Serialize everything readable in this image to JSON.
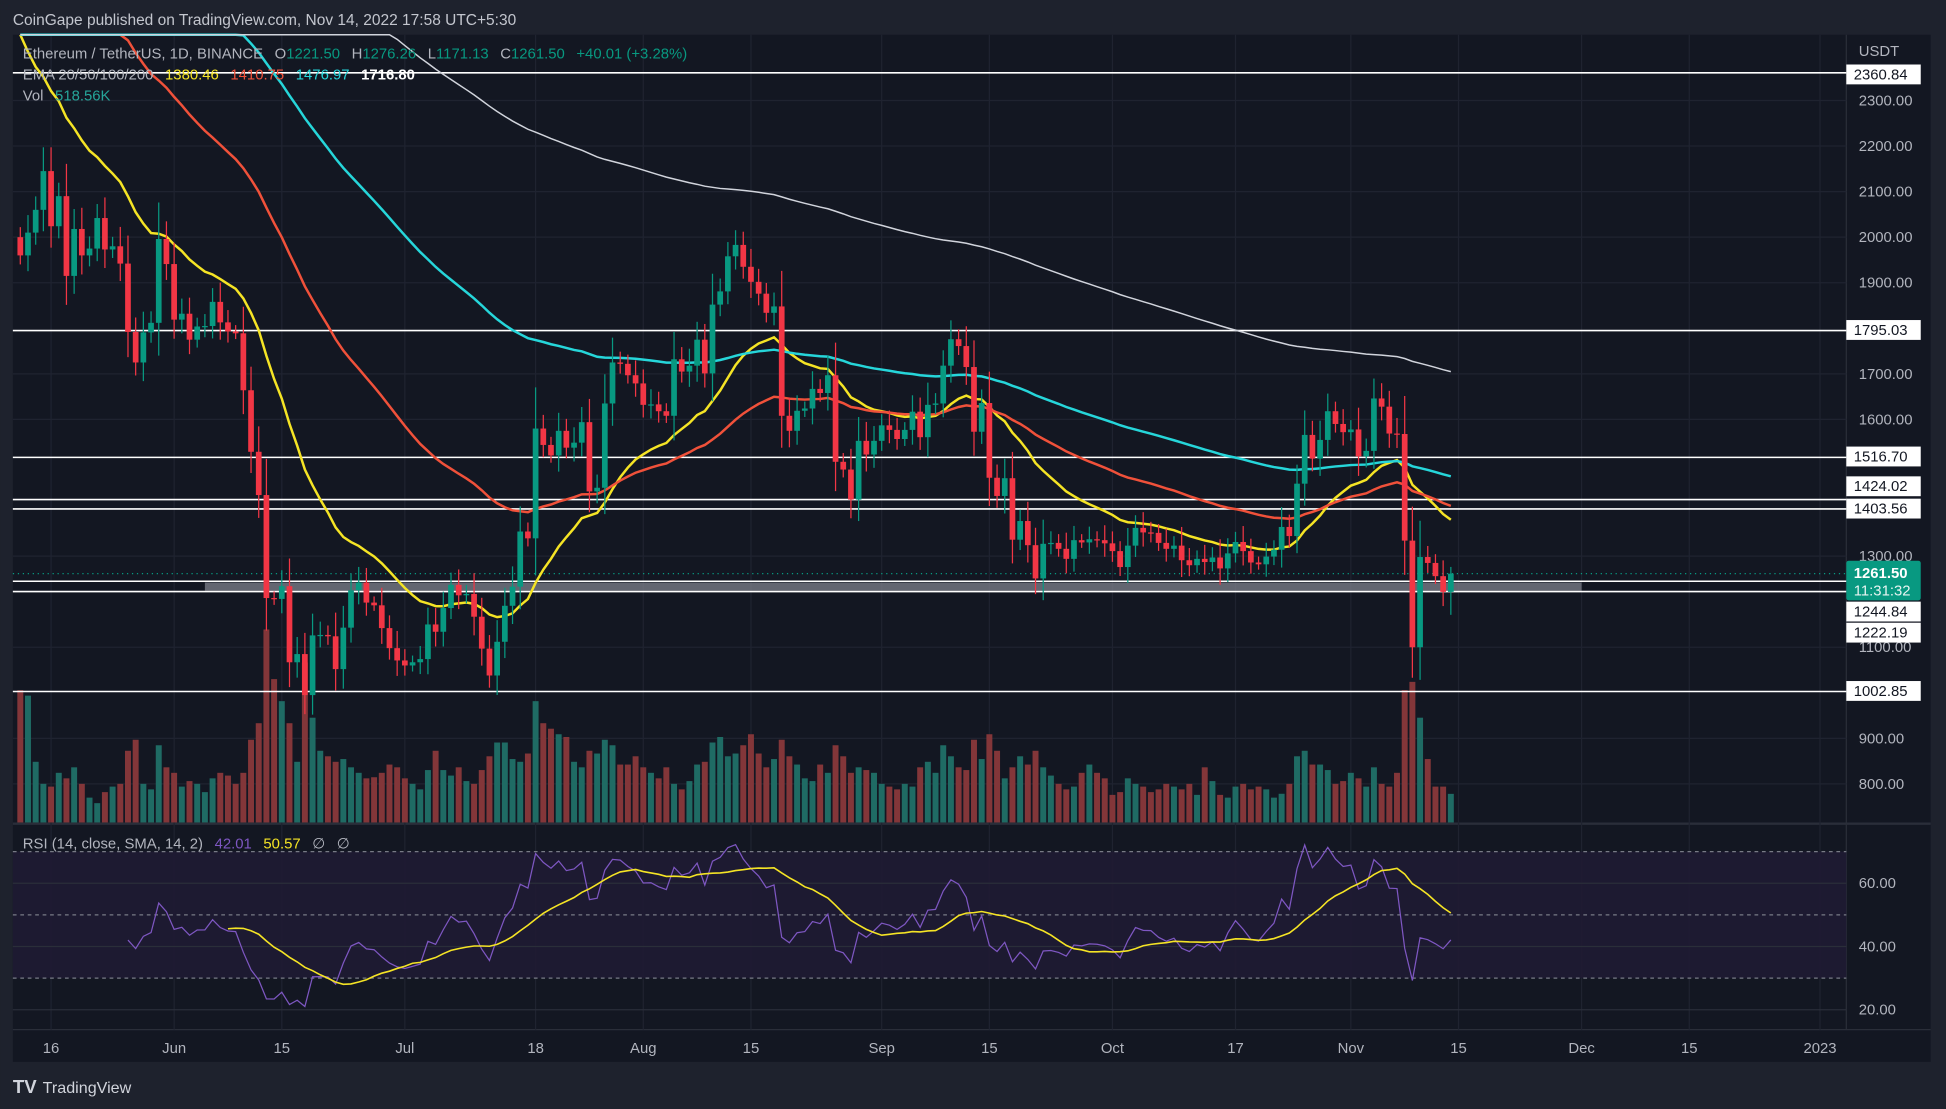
{
  "header": {
    "published": "CoinGape published on TradingView.com, Nov 14, 2022 17:58 UTC+5:30"
  },
  "legend": {
    "symbol": "Ethereum / TetherUS, 1D, BINANCE",
    "o_label": "O",
    "o": "1221.50",
    "h_label": "H",
    "h": "1276.26",
    "l_label": "L",
    "l": "1171.13",
    "c_label": "C",
    "c": "1261.50",
    "change": "+40.01 (+3.28%)",
    "ema_label": "EMA 20/50/100/200",
    "ema20": "1380.46",
    "ema50": "1410.75",
    "ema100": "1476.97",
    "ema200": "1716.80",
    "vol_label": "Vol",
    "vol": "518.56K"
  },
  "rsi_legend": {
    "label": "RSI (14, close, SMA, 14, 2)",
    "rsi": "42.01",
    "sma": "50.57",
    "extra1": "∅",
    "extra2": "∅"
  },
  "price_axis": {
    "currency": "USDT",
    "ticks": [
      "2300.00",
      "2200.00",
      "2100.00",
      "2000.00",
      "1900.00",
      "1700.00",
      "1600.00",
      "1300.00",
      "1100.00",
      "900.00",
      "800.00"
    ],
    "last_price": "1261.50",
    "countdown": "11:31:32"
  },
  "rsi_axis": {
    "ticks": [
      "60.00",
      "40.00",
      "20.00"
    ]
  },
  "time_axis": {
    "labels": [
      "16",
      "Jun",
      "15",
      "Jul",
      "18",
      "Aug",
      "15",
      "Sep",
      "15",
      "Oct",
      "17",
      "Nov",
      "15",
      "Dec",
      "15",
      "2023"
    ]
  },
  "footer": {
    "brand": "TradingView"
  },
  "colors": {
    "up": "#089981",
    "down": "#f23645",
    "ema20": "#f5e425",
    "ema50": "#f0513a",
    "ema100": "#26d6da",
    "ema200": "#d1d4dc",
    "rsi": "#7e57c2",
    "rsi_sma": "#f5e425"
  },
  "chart_data": {
    "type": "candlestick",
    "title": "Ethereum / TetherUS, 1D, BINANCE",
    "start_date": "2022-05-12",
    "end_date": "2022-11-14",
    "ylabel": "USDT",
    "ylim": [
      700,
      2420
    ],
    "first_open": 2000,
    "closes": [
      1960,
      2010,
      2060,
      2145,
      2024,
      2090,
      1915,
      2018,
      1960,
      1975,
      2042,
      1973,
      1980,
      1942,
      1792,
      1725,
      1791,
      1812,
      1996,
      1941,
      1819,
      1832,
      1775,
      1804,
      1805,
      1858,
      1813,
      1793,
      1789,
      1664,
      1529,
      1434,
      1208,
      1206,
      1234,
      1067,
      1085,
      995,
      1126,
      1127,
      1124,
      1052,
      1143,
      1225,
      1242,
      1198,
      1192,
      1142,
      1098,
      1071,
      1060,
      1067,
      1074,
      1150,
      1134,
      1186,
      1237,
      1214,
      1217,
      1167,
      1097,
      1038,
      1112,
      1191,
      1233,
      1354,
      1339,
      1580,
      1544,
      1521,
      1575,
      1538,
      1549,
      1594,
      1442,
      1450,
      1635,
      1725,
      1722,
      1697,
      1679,
      1632,
      1633,
      1618,
      1608,
      1732,
      1705,
      1718,
      1775,
      1701,
      1852,
      1881,
      1958,
      1983,
      1935,
      1902,
      1876,
      1834,
      1848,
      1608,
      1575,
      1619,
      1624,
      1667,
      1658,
      1697,
      1507,
      1490,
      1424,
      1553,
      1523,
      1553,
      1587,
      1577,
      1557,
      1577,
      1617,
      1561,
      1632,
      1635,
      1718,
      1776,
      1761,
      1715,
      1573,
      1636,
      1472,
      1432,
      1471,
      1336,
      1377,
      1324,
      1251,
      1327,
      1329,
      1316,
      1294,
      1335,
      1330,
      1337,
      1335,
      1328,
      1311,
      1276,
      1323,
      1362,
      1352,
      1351,
      1329,
      1316,
      1323,
      1291,
      1280,
      1294,
      1287,
      1297,
      1273,
      1306,
      1331,
      1311,
      1286,
      1282,
      1299,
      1314,
      1364,
      1344,
      1459,
      1566,
      1514,
      1555,
      1618,
      1590,
      1572,
      1578,
      1519,
      1531,
      1646,
      1628,
      1569,
      1568,
      1334,
      1100,
      1298,
      1285,
      1256,
      1221.5,
      1261.5
    ],
    "volume_k": [
      2400,
      2300,
      1100,
      700,
      650,
      900,
      800,
      1000,
      700,
      450,
      350,
      550,
      650,
      700,
      1300,
      1500,
      700,
      600,
      1400,
      1000,
      900,
      650,
      750,
      700,
      550,
      800,
      900,
      850,
      700,
      900,
      1500,
      1800,
      3500,
      2600,
      2200,
      1800,
      1100,
      2900,
      1900,
      1300,
      1200,
      1100,
      1150,
      1000,
      900,
      800,
      820,
      900,
      1050,
      1000,
      800,
      700,
      600,
      950,
      1300,
      950,
      850,
      1000,
      750,
      700,
      950,
      1200,
      1450,
      1450,
      1150,
      1100,
      1250,
      2200,
      1800,
      1700,
      1600,
      1550,
      1100,
      1000,
      1300,
      1250,
      1500,
      1400,
      1050,
      1050,
      1200,
      1000,
      900,
      800,
      1000,
      700,
      600,
      750,
      1050,
      1100,
      1450,
      1550,
      1200,
      1250,
      1400,
      1600,
      1250,
      1000,
      1150,
      1500,
      1200,
      1050,
      800,
      750,
      1050,
      900,
      1400,
      1200,
      900,
      1000,
      950,
      900,
      700,
      650,
      600,
      700,
      650,
      1000,
      1100,
      900,
      1400,
      1200,
      1000,
      950,
      1500,
      1150,
      1600,
      1300,
      800,
      1000,
      1200,
      1050,
      1300,
      1000,
      850,
      700,
      600,
      650,
      900,
      1050,
      900,
      800,
      500,
      550,
      800,
      700,
      650,
      550,
      600,
      700,
      650,
      600,
      700,
      500,
      1000,
      750,
      500,
      450,
      650,
      700,
      600,
      650,
      600,
      450,
      520,
      700,
      1200,
      1300,
      1050,
      1050,
      950,
      700,
      750,
      900,
      800,
      650,
      1000,
      700,
      650,
      900,
      2400,
      2550,
      1900,
      1150,
      650,
      650,
      518.56
    ],
    "ema_periods": [
      20,
      50,
      100,
      200
    ],
    "ema_seed": [
      2500,
      2800,
      2900,
      3000
    ],
    "rsi_period": 14,
    "rsi_levels": [
      70,
      50,
      30
    ],
    "horizontal_levels": [
      {
        "price": 2360.84,
        "label": "2360.84"
      },
      {
        "price": 1795.03,
        "label": "1795.03"
      },
      {
        "price": 1516.7,
        "label": "1516.70"
      },
      {
        "price": 1424.02,
        "label": "1424.02"
      },
      {
        "price": 1403.56,
        "label": "1403.56"
      },
      {
        "price": 1244.84,
        "label": "1244.84"
      },
      {
        "price": 1222.19,
        "label": "1222.19"
      },
      {
        "price": 1002.85,
        "label": "1002.85"
      }
    ],
    "support_zone": {
      "from": 1224,
      "to": 1242,
      "start_date": "2022-06-05",
      "end_date": "2022-12-01"
    }
  }
}
